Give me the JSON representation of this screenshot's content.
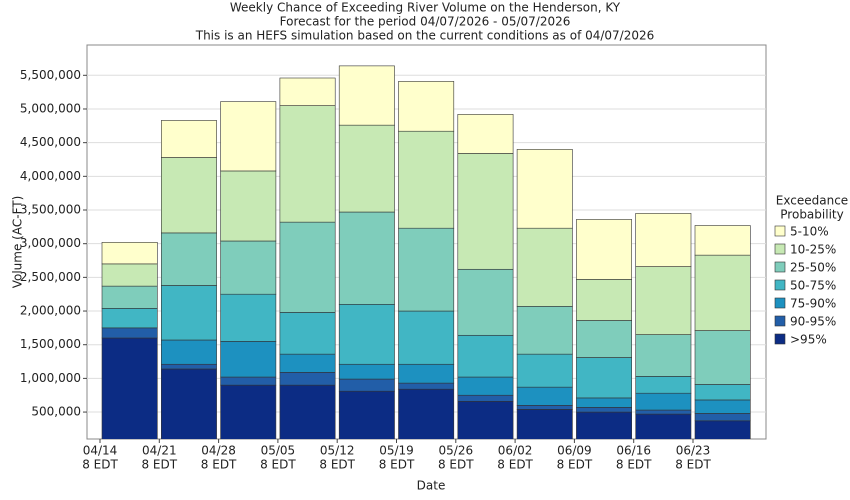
{
  "chart_data": {
    "type": "stacked_bar",
    "title": [
      "Weekly Chance of Exceeding River Volume on the Henderson, KY",
      "Forecast for the period 04/07/2026 - 05/07/2026",
      "This is an HEFS simulation based on the current conditions as of 04/07/2026"
    ],
    "x_label": "Date",
    "y_label": "Volume (AC-FT)",
    "categories": [
      "04/14",
      "04/21",
      "04/28",
      "05/05",
      "05/12",
      "05/19",
      "05/26",
      "06/02",
      "06/09",
      "06/16",
      "06/23"
    ],
    "category_sublabels": [
      "8 EDT",
      "8 EDT",
      "8 EDT",
      "8 EDT",
      "8 EDT",
      "8 EDT",
      "8 EDT",
      "8 EDT",
      "8 EDT",
      "8 EDT",
      "8 EDT"
    ],
    "legend_title": [
      "Exceedance",
      "Probability"
    ],
    "series": [
      {
        "name": ">95%",
        "color": "#0c2c84",
        "values": [
          1600000,
          1140000,
          900000,
          900000,
          810000,
          840000,
          660000,
          540000,
          500000,
          470000,
          370000
        ]
      },
      {
        "name": "90-95%",
        "color": "#225ea8",
        "values": [
          150000,
          70000,
          120000,
          190000,
          180000,
          90000,
          90000,
          60000,
          70000,
          60000,
          110000
        ]
      },
      {
        "name": "75-90%",
        "color": "#1d91c0",
        "values": [
          0,
          360000,
          530000,
          270000,
          220000,
          280000,
          270000,
          270000,
          140000,
          250000,
          200000
        ]
      },
      {
        "name": "50-75%",
        "color": "#41b6c4",
        "values": [
          290000,
          810000,
          700000,
          620000,
          890000,
          790000,
          620000,
          490000,
          600000,
          250000,
          230000
        ]
      },
      {
        "name": "25-50%",
        "color": "#7fcdbb",
        "values": [
          330000,
          780000,
          790000,
          1340000,
          1370000,
          1230000,
          980000,
          710000,
          550000,
          620000,
          800000
        ]
      },
      {
        "name": "10-25%",
        "color": "#c7e9b4",
        "values": [
          330000,
          1120000,
          1040000,
          1730000,
          1290000,
          1440000,
          1720000,
          1160000,
          610000,
          1010000,
          1120000
        ]
      },
      {
        "name": "5-10%",
        "color": "#ffffcc",
        "values": [
          320000,
          550000,
          1030000,
          410000,
          880000,
          740000,
          580000,
          1170000,
          890000,
          790000,
          440000
        ]
      }
    ],
    "ylim": [
      100000,
      5950000
    ],
    "yticks": [
      {
        "value": 500000,
        "label": "500,000"
      },
      {
        "value": 1000000,
        "label": "1,000,000"
      },
      {
        "value": 1500000,
        "label": "1,500,000"
      },
      {
        "value": 2000000,
        "label": "2,000,000"
      },
      {
        "value": 2500000,
        "label": "2,500,000"
      },
      {
        "value": 3000000,
        "label": "3,000,000"
      },
      {
        "value": 3500000,
        "label": "3,500,000"
      },
      {
        "value": 4000000,
        "label": "4,000,000"
      },
      {
        "value": 4500000,
        "label": "4,500,000"
      },
      {
        "value": 5000000,
        "label": "5,000,000"
      },
      {
        "value": 5500000,
        "label": "5,500,000"
      }
    ],
    "grid": true
  }
}
